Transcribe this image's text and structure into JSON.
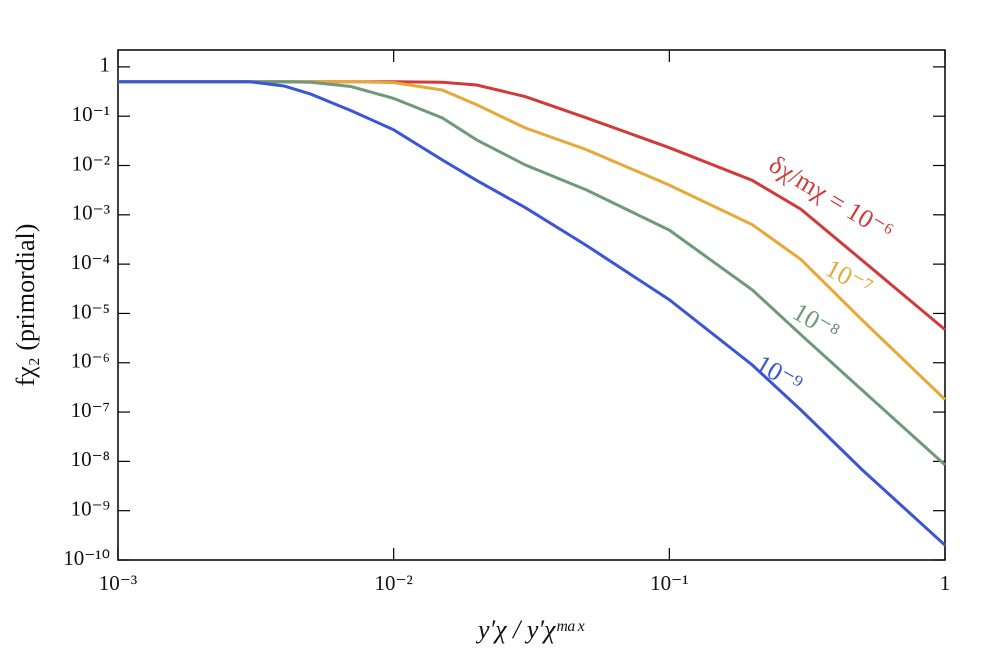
{
  "chart_data": {
    "type": "line",
    "x_label": "y′χ / y′χᵐᵃˣ",
    "y_label": "fχ₂ (primordial)",
    "x": [
      0.001,
      0.002,
      0.003,
      0.004,
      0.005,
      0.007,
      0.01,
      0.015,
      0.02,
      0.03,
      0.05,
      0.1,
      0.2,
      0.3,
      0.5,
      1
    ],
    "series": [
      {
        "name": "δχ/mχ = 10⁻⁶",
        "color": "#d03a3a",
        "values": [
          0.5,
          0.5,
          0.5,
          0.5,
          0.5,
          0.5,
          0.5,
          0.49,
          0.43,
          0.25,
          0.093,
          0.023,
          0.005,
          0.0013,
          0.00012,
          4.7e-06
        ]
      },
      {
        "name": "10⁻⁷",
        "color": "#e8a838",
        "values": [
          0.5,
          0.5,
          0.5,
          0.5,
          0.5,
          0.5,
          0.48,
          0.34,
          0.17,
          0.058,
          0.021,
          0.004,
          0.00063,
          0.000125,
          7.4e-06,
          1.8e-07
        ]
      },
      {
        "name": "10⁻⁸",
        "color": "#6e9a7a",
        "values": [
          0.5,
          0.5,
          0.5,
          0.5,
          0.49,
          0.4,
          0.23,
          0.093,
          0.033,
          0.0103,
          0.0032,
          0.00049,
          3e-05,
          3.7e-06,
          2.8e-07,
          8.5e-09
        ]
      },
      {
        "name": "10⁻⁹",
        "color": "#3a55d8",
        "values": [
          0.5,
          0.5,
          0.5,
          0.41,
          0.28,
          0.13,
          0.053,
          0.013,
          0.005,
          0.0014,
          0.00024,
          1.9e-05,
          9e-07,
          1.1e-07,
          6.8e-09,
          2e-10
        ]
      }
    ],
    "xscale": "log",
    "yscale": "log",
    "xlim": [
      0.001,
      1
    ],
    "ylim": [
      1e-10,
      2.2
    ],
    "xticks": [
      {
        "value": 0.001,
        "label": "10⁻³"
      },
      {
        "value": 0.01,
        "label": "10⁻²"
      },
      {
        "value": 0.1,
        "label": "10⁻¹"
      },
      1
    ],
    "yticks": [
      1,
      {
        "value": 0.1,
        "label": "10⁻¹"
      },
      {
        "value": 0.01,
        "label": "10⁻²"
      },
      {
        "value": 0.001,
        "label": "10⁻³"
      },
      {
        "value": 0.0001,
        "label": "10⁻⁴"
      },
      {
        "value": 1e-05,
        "label": "10⁻⁵"
      },
      {
        "value": 1e-06,
        "label": "10⁻⁶"
      },
      {
        "value": 1e-07,
        "label": "10⁻⁷"
      },
      {
        "value": 1e-08,
        "label": "10⁻⁸"
      },
      {
        "value": 1e-09,
        "label": "10⁻⁹"
      },
      {
        "value": 1e-10,
        "label": "10⁻¹⁰"
      }
    ]
  }
}
